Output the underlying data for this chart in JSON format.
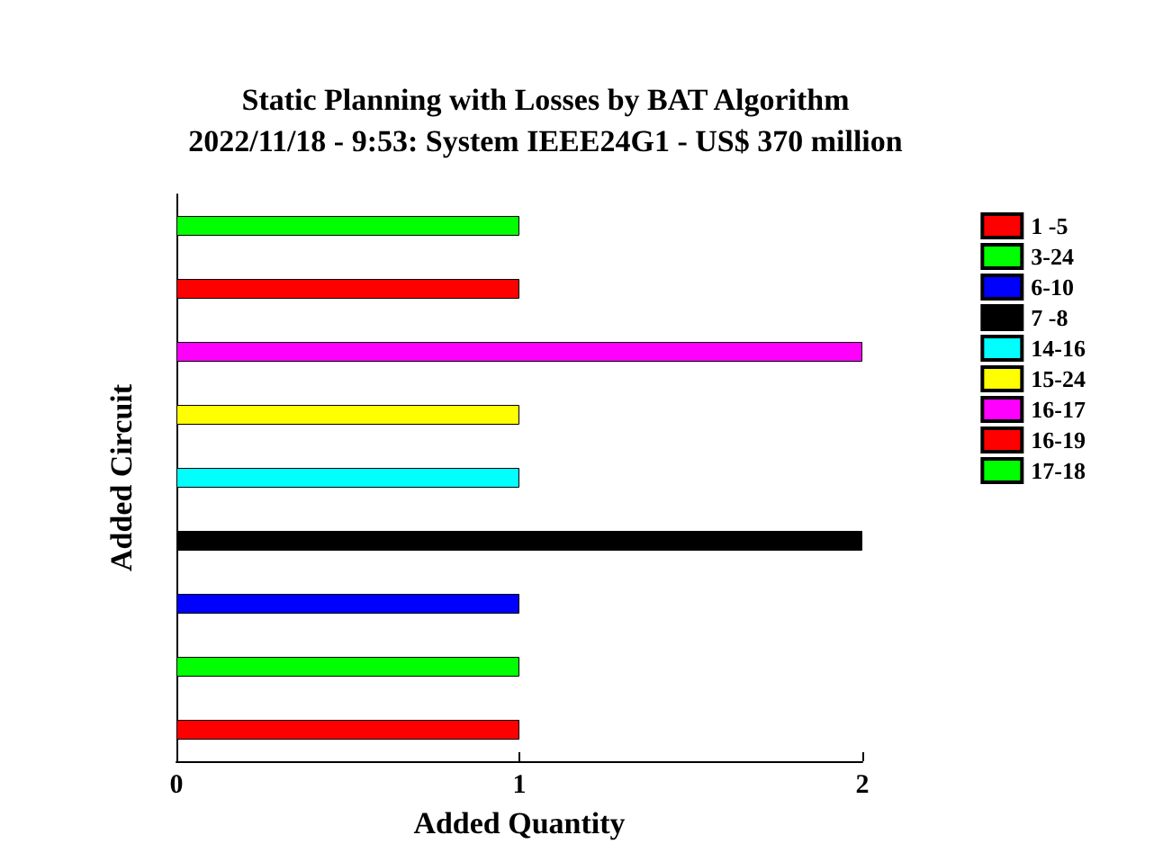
{
  "chart_data": {
    "type": "bar",
    "orientation": "horizontal",
    "title": "Static Planning with Losses by BAT Algorithm",
    "subtitle": "2022/11/18 - 9:53: System IEEE24G1 - US$ 370 million",
    "xlabel": "Added Quantity",
    "ylabel": "Added Circuit",
    "categories": [
      null,
      null,
      null,
      null,
      null,
      null,
      null,
      null,
      null
    ],
    "xlim": [
      0,
      2
    ],
    "xticks": [
      0,
      1,
      2
    ],
    "tick_labels": "x",
    "grid": false,
    "legend": "top right",
    "series": [
      {
        "name": "1 -5",
        "color": "#ff0000",
        "values": [
          null,
          null,
          null,
          null,
          null,
          null,
          null,
          null,
          1
        ]
      },
      {
        "name": "3-24",
        "color": "#00ff00",
        "values": [
          null,
          null,
          null,
          null,
          null,
          null,
          null,
          1,
          null
        ]
      },
      {
        "name": "6-10",
        "color": "#0000ff",
        "values": [
          null,
          null,
          null,
          null,
          null,
          null,
          1,
          null,
          null
        ]
      },
      {
        "name": "7 -8",
        "color": "#000000",
        "values": [
          null,
          null,
          null,
          null,
          null,
          2,
          null,
          null,
          null
        ]
      },
      {
        "name": "14-16",
        "color": "#00ffff",
        "values": [
          null,
          null,
          null,
          null,
          1,
          null,
          null,
          null,
          null
        ]
      },
      {
        "name": "15-24",
        "color": "#ffff00",
        "values": [
          null,
          null,
          null,
          1,
          null,
          null,
          null,
          null,
          null
        ]
      },
      {
        "name": "16-17",
        "color": "#ff00ff",
        "values": [
          null,
          null,
          2,
          null,
          null,
          null,
          null,
          null,
          null
        ]
      },
      {
        "name": "16-19",
        "color": "#ff0000",
        "values": [
          null,
          1,
          null,
          null,
          null,
          null,
          null,
          null,
          null
        ]
      },
      {
        "name": "17-18",
        "color": "#00ff00",
        "values": [
          1,
          null,
          null,
          null,
          null,
          null,
          null,
          null,
          null
        ]
      }
    ]
  }
}
